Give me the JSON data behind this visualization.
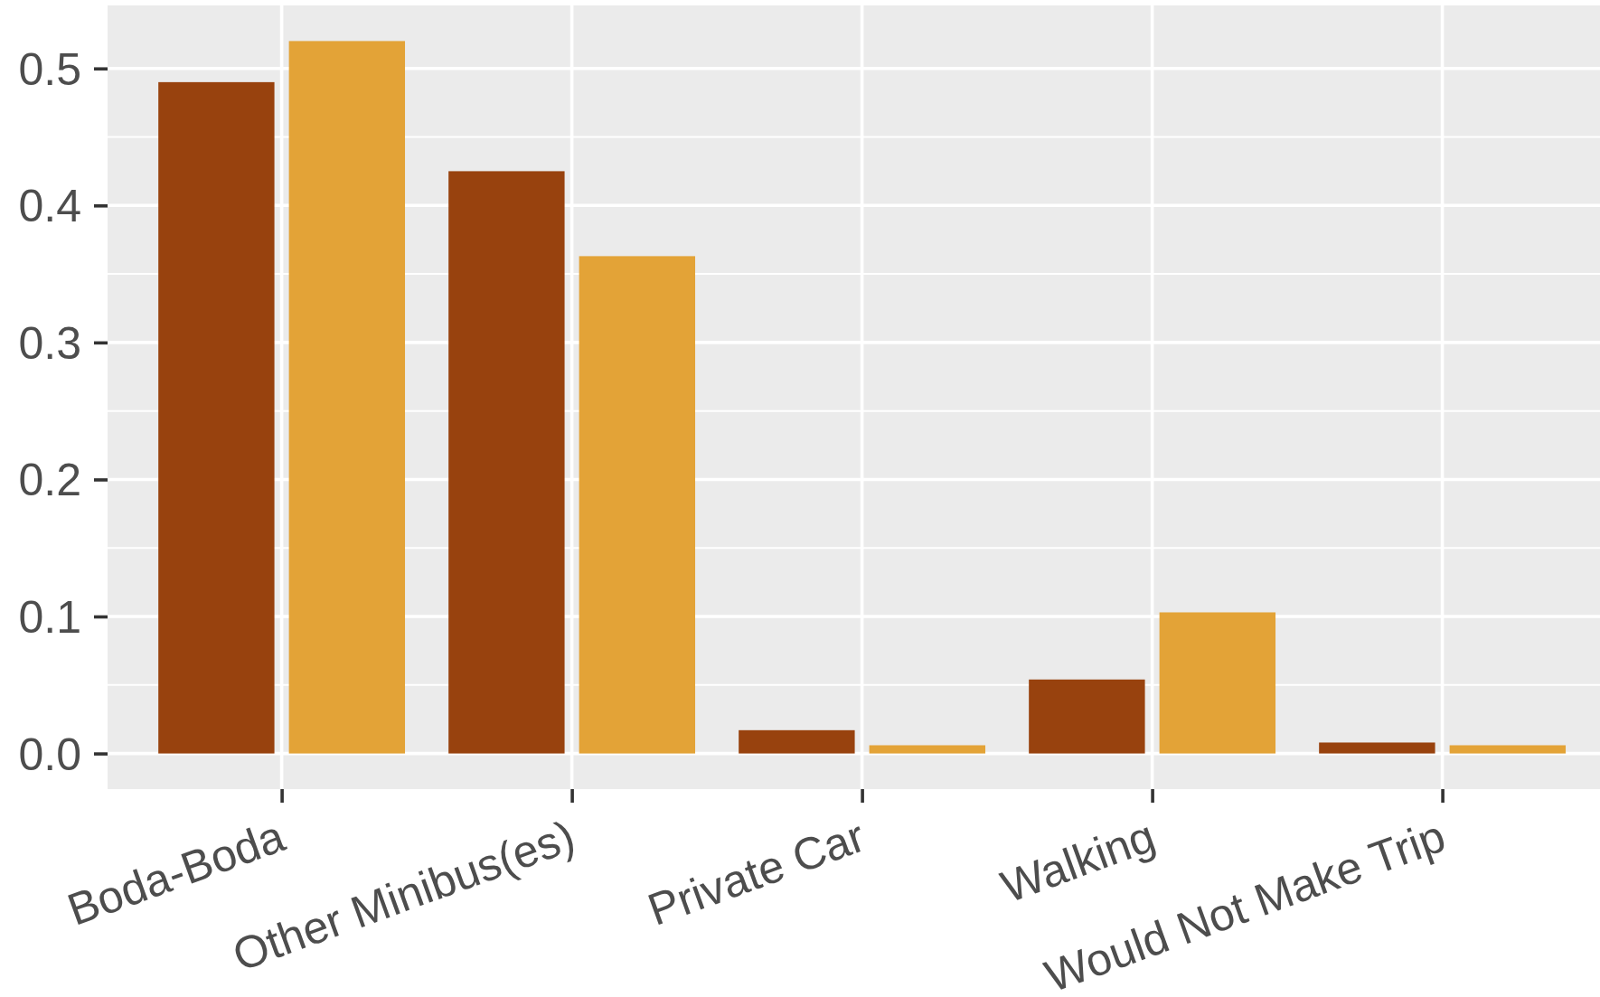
{
  "chart_data": {
    "type": "bar",
    "categories": [
      "Boda-Boda",
      "Other Minibus(es)",
      "Private Car",
      "Walking",
      "Would Not Make Trip"
    ],
    "series": [
      {
        "color": "#98420e",
        "values": [
          0.49,
          0.425,
          0.017,
          0.054,
          0.008
        ]
      },
      {
        "color": "#e3a337",
        "values": [
          0.52,
          0.363,
          0.006,
          0.103,
          0.006
        ]
      }
    ],
    "ylim": [
      -0.026,
      0.546
    ],
    "yticks": [
      {
        "value": 0,
        "label": "0.0"
      },
      0.1,
      0.2,
      0.3,
      0.4,
      0.5
    ],
    "grid": true
  }
}
